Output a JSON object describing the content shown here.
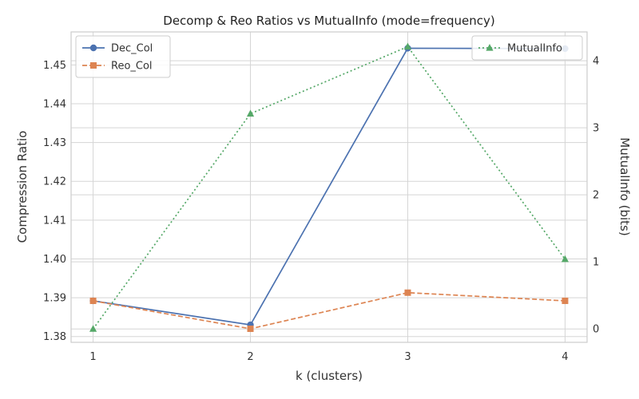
{
  "chart_data": {
    "type": "line",
    "title": "Decomp & Reo Ratios vs MutualInfo (mode=frequency)",
    "xlabel": "k (clusters)",
    "ylabel_left": "Compression Ratio",
    "ylabel_right": "MutualInfo (bits)",
    "x": [
      1,
      2,
      3,
      4
    ],
    "x_ticks": [
      "1",
      "2",
      "3",
      "4"
    ],
    "ylim_left": [
      1.3785,
      1.4585
    ],
    "yticks_left": [
      "1.38",
      "1.39",
      "1.40",
      "1.41",
      "1.42",
      "1.43",
      "1.44",
      "1.45"
    ],
    "ylim_right": [
      -0.2,
      4.43
    ],
    "yticks_right": [
      "0",
      "1",
      "2",
      "3",
      "4"
    ],
    "grid": true,
    "series": [
      {
        "name": "Dec_Col",
        "axis": "left",
        "values": [
          1.3892,
          1.383,
          1.4543,
          1.4542
        ],
        "color": "#4c72b0",
        "marker": "circle",
        "linestyle": "solid"
      },
      {
        "name": "Reo_Col",
        "axis": "left",
        "values": [
          1.3892,
          1.382,
          1.3913,
          1.3892
        ],
        "color": "#dd8452",
        "marker": "square",
        "linestyle": "dashed"
      },
      {
        "name": "MutualInfo",
        "axis": "right",
        "values": [
          0.0,
          3.21,
          4.21,
          1.04
        ],
        "color": "#55a868",
        "marker": "triangle",
        "linestyle": "dotted"
      }
    ],
    "legend_left_position": "upper-left",
    "legend_right_position": "upper-right"
  }
}
